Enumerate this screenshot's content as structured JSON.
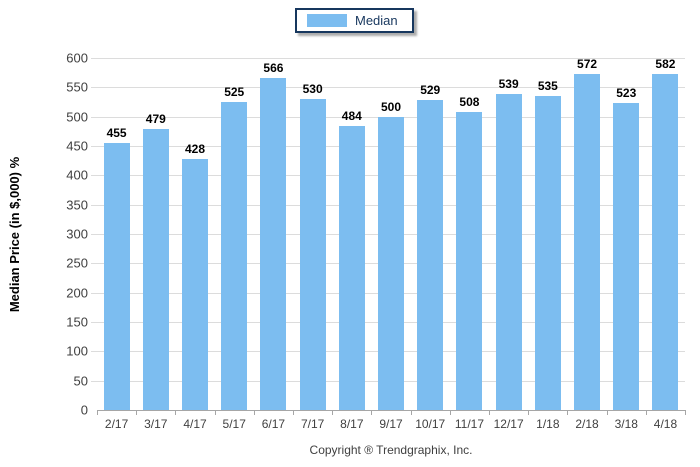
{
  "colors": {
    "bar": "#7CBDF0",
    "gridline": "#DCDCDC",
    "axis_line": "#A6A6A6",
    "tick_text": "#404040",
    "value_text": "#000000",
    "legend_border": "#17375E",
    "legend_text": "#17375E"
  },
  "legend": {
    "label": "Median",
    "swatch_color": "#7CBDF0",
    "position": "top-center"
  },
  "chart_data": {
    "type": "bar",
    "title": "",
    "categories": [
      "2/17",
      "3/17",
      "4/17",
      "5/17",
      "6/17",
      "7/17",
      "8/17",
      "9/17",
      "10/17",
      "11/17",
      "12/17",
      "1/18",
      "2/18",
      "3/18",
      "4/18"
    ],
    "series": [
      {
        "name": "Median",
        "values": [
          455,
          479,
          428,
          525,
          566,
          530,
          484,
          500,
          529,
          508,
          539,
          535,
          572,
          523,
          582
        ]
      }
    ],
    "xlabel": "",
    "ylabel": "Median Price (in $,000) %",
    "ylim": [
      0,
      600
    ],
    "ytick_step": 50,
    "grid": true,
    "value_labels": true,
    "legend_position": "top-center"
  },
  "footer": {
    "copyright": "Copyright ® Trendgraphix, Inc."
  }
}
